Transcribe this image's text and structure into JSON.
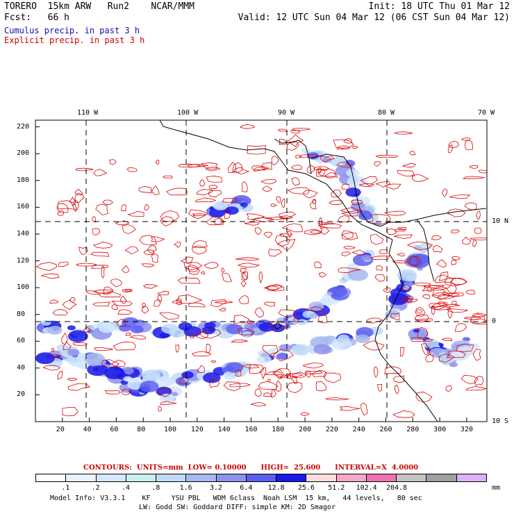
{
  "header": {
    "left_line1": "TORERO  15km ARW   Run2    NCAR/MMM",
    "left_line2": "Fcst:   66 h",
    "right_line1": "Init: 18 UTC Thu 01 Mar 12",
    "right_line2": "Valid: 12 UTC Sun 04 Mar 12 (06 CST Sun 04 Mar 12)",
    "cumulus_label": "Cumulus precip. in past 3 h",
    "explicit_label": "Explicit precip. in past 3 h"
  },
  "map": {
    "top_lon_labels": [
      "110 W",
      "100 W",
      "90 W",
      "80 W",
      "70 W"
    ],
    "right_lat_labels": [
      "10 N",
      "0",
      "10 S"
    ],
    "y_ticks": [
      "220",
      "200",
      "180",
      "160",
      "140",
      "120",
      "100",
      "80",
      "60",
      "40",
      "20"
    ],
    "x_ticks": [
      "20",
      "40",
      "60",
      "80",
      "100",
      "120",
      "140",
      "160",
      "180",
      "200",
      "220",
      "240",
      "260",
      "280",
      "300",
      "320"
    ],
    "colors": {
      "explicit": "#dd0000",
      "coast": "#000000"
    }
  },
  "contour_info": "CONTOURS:  UNITS=mm  LOW= 0.10000      HIGH=  25.600      INTERVAL=X  4.0000",
  "colorbar": {
    "colors": [
      "#ffffff",
      "#eaf4ff",
      "#d4e8ff",
      "#c8f0f0",
      "#bedcf8",
      "#a8b8f0",
      "#8e92ee",
      "#5b5ef0",
      "#1a1ae6",
      "#fcdcdc",
      "#f6a8cc",
      "#f070b4",
      "#c4c4c4",
      "#a0a0a0",
      "#e0b0f8"
    ],
    "labels": [
      ".1",
      ".2",
      ".4",
      ".8",
      "1.6",
      "3.2",
      "6.4",
      "12.8",
      "25.6",
      "51.2",
      "102.4",
      "204.8"
    ],
    "units": "mm"
  },
  "footer": {
    "line1": "Model Info: V3.3.1    KF     YSU PBL   WDM 6class  Noah LSM  15 km,   44 levels,   80 sec",
    "line2": "LW: Godd SW: Goddard DIFF: simple KM: 2D Smagor"
  }
}
